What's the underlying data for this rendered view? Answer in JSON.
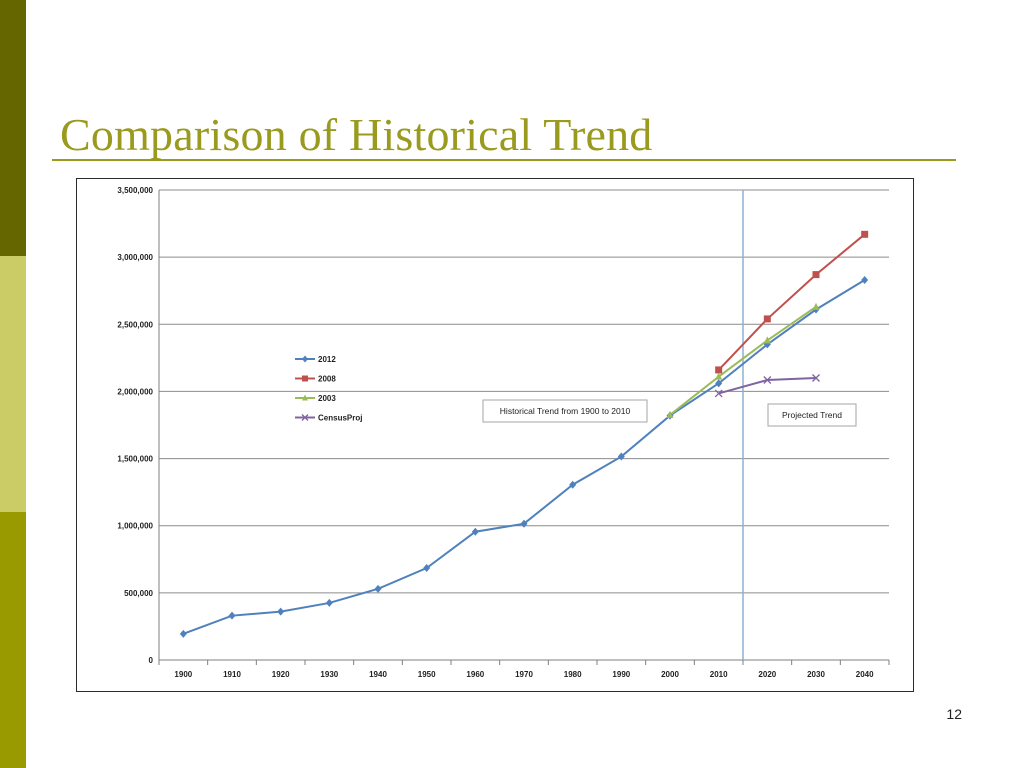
{
  "slide": {
    "title": "Comparison of Historical Trend",
    "page_number": "12"
  },
  "colors": {
    "title": "#9a9a1e",
    "rule": "#9a9a1e",
    "sidebar_dark": "#666600",
    "sidebar_light": "#cccc66",
    "sidebar_mid": "#999900",
    "grid": "#8c8c8c",
    "divider": "#8fb0d2"
  },
  "chart_data": {
    "type": "line",
    "x": [
      1900,
      1910,
      1920,
      1930,
      1940,
      1950,
      1960,
      1970,
      1980,
      1990,
      2000,
      2010,
      2020,
      2030,
      2040
    ],
    "xlabels": [
      "1900",
      "1910",
      "1920",
      "1930",
      "1940",
      "1950",
      "1960",
      "1970",
      "1980",
      "1990",
      "2000",
      "2010",
      "2020",
      "2030",
      "2040"
    ],
    "ylim": [
      0,
      3500000
    ],
    "yticks": [
      0,
      500000,
      1000000,
      1500000,
      2000000,
      2500000,
      3000000,
      3500000
    ],
    "ytick_labels": [
      "0",
      "500,000",
      "1,000,000",
      "1,500,000",
      "2,000,000",
      "2,500,000",
      "3,000,000",
      "3,500,000"
    ],
    "grid": "horizontal",
    "legend_position": "left",
    "series": [
      {
        "name": "2012",
        "color": "#4f81bd",
        "marker": "diamond",
        "x": [
          1900,
          1910,
          1920,
          1930,
          1940,
          1950,
          1960,
          1970,
          1980,
          1990,
          2000,
          2010,
          2020,
          2030,
          2040
        ],
        "values": [
          195000,
          330000,
          360000,
          425000,
          530000,
          685000,
          955000,
          1015000,
          1305000,
          1515000,
          1820000,
          2060000,
          2350000,
          2610000,
          2830000
        ]
      },
      {
        "name": "2008",
        "color": "#c0504d",
        "marker": "square",
        "x": [
          2010,
          2020,
          2030,
          2040
        ],
        "values": [
          2160000,
          2540000,
          2870000,
          3170000
        ]
      },
      {
        "name": "2003",
        "color": "#9bbb59",
        "marker": "triangle",
        "x": [
          2000,
          2010,
          2020,
          2030
        ],
        "values": [
          1825000,
          2110000,
          2380000,
          2630000
        ]
      },
      {
        "name": "CensusProj",
        "color": "#8064a2",
        "marker": "x",
        "x": [
          2010,
          2020,
          2030
        ],
        "values": [
          1985000,
          2085000,
          2100000
        ]
      }
    ],
    "divider_after_x": 2015,
    "annotations": [
      {
        "text": "Historical Trend  from  1900  to 2010"
      },
      {
        "text": "Projected  Trend"
      }
    ]
  }
}
